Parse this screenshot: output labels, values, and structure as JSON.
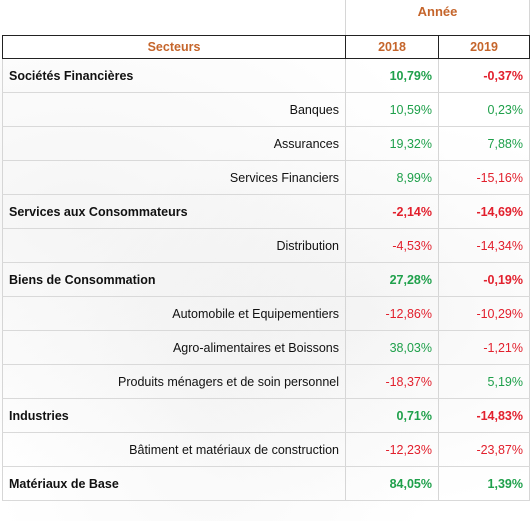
{
  "header": {
    "group_label": "Année",
    "col_sector": "Secteurs",
    "col_2018": "2018",
    "col_2019": "2019"
  },
  "colors": {
    "header_text": "#c5652b",
    "positive": "#1fa04b",
    "negative": "#e2202d"
  },
  "rows": [
    {
      "label": "Sociétés Financières",
      "v2018": "10,79%",
      "v2019": "-0,37%",
      "type": "category"
    },
    {
      "label": "Banques",
      "v2018": "10,59%",
      "v2019": "0,23%",
      "type": "sub"
    },
    {
      "label": "Assurances",
      "v2018": "19,32%",
      "v2019": "7,88%",
      "type": "sub"
    },
    {
      "label": "Services Financiers",
      "v2018": "8,99%",
      "v2019": "-15,16%",
      "type": "sub"
    },
    {
      "label": "Services aux Consommateurs",
      "v2018": "-2,14%",
      "v2019": "-14,69%",
      "type": "category"
    },
    {
      "label": "Distribution",
      "v2018": "-4,53%",
      "v2019": "-14,34%",
      "type": "sub"
    },
    {
      "label": "Biens de Consommation",
      "v2018": "27,28%",
      "v2019": "-0,19%",
      "type": "category"
    },
    {
      "label": "Automobile et Equipementiers",
      "v2018": "-12,86%",
      "v2019": "-10,29%",
      "type": "sub"
    },
    {
      "label": "Agro-alimentaires et Boissons",
      "v2018": "38,03%",
      "v2019": "-1,21%",
      "type": "sub"
    },
    {
      "label": "Produits ménagers et de soin personnel",
      "v2018": "-18,37%",
      "v2019": "5,19%",
      "type": "sub"
    },
    {
      "label": "Industries",
      "v2018": "0,71%",
      "v2019": "-14,83%",
      "type": "category"
    },
    {
      "label": "Bâtiment et matériaux de construction",
      "v2018": "-12,23%",
      "v2019": "-23,87%",
      "type": "sub"
    },
    {
      "label": "Matériaux de Base",
      "v2018": "84,05%",
      "v2019": "1,39%",
      "type": "category"
    }
  ]
}
